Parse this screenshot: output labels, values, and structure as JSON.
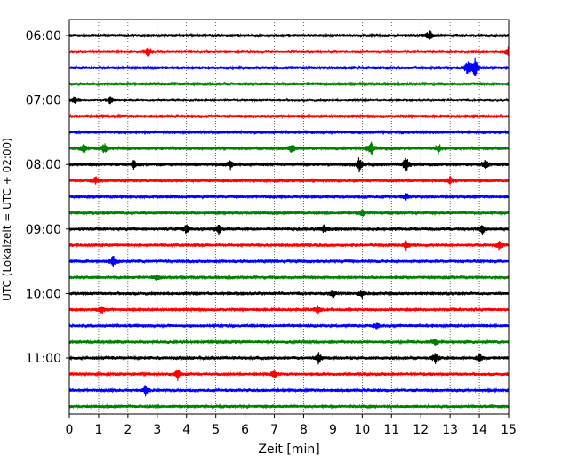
{
  "chart_data": {
    "type": "line",
    "title": "",
    "xlabel": "Zeit  [min]",
    "ylabel": "UTC (Lokalzeit = UTC + 02:00)",
    "xlim": [
      0,
      15
    ],
    "x_ticks": [
      "0",
      "1",
      "2",
      "3",
      "4",
      "5",
      "6",
      "7",
      "8",
      "9",
      "10",
      "11",
      "12",
      "13",
      "14",
      "15"
    ],
    "y_ticks": [
      "06:00",
      "07:00",
      "08:00",
      "09:00",
      "10:00",
      "11:00"
    ],
    "row_start": "06:00",
    "row_interval_min": 15,
    "row_colors": [
      "#000000",
      "#ff0000",
      "#0000ff",
      "#008000"
    ],
    "grid": "vertical dotted at each minute",
    "traces": [
      {
        "label": "06:00",
        "events": [
          [
            12.3,
            0.6
          ]
        ]
      },
      {
        "label": "06:15",
        "events": [
          [
            2.7,
            0.5
          ],
          [
            15.0,
            0.6
          ]
        ]
      },
      {
        "label": "06:30",
        "events": [
          [
            13.6,
            0.8
          ],
          [
            13.85,
            1.0
          ]
        ]
      },
      {
        "label": "06:45",
        "events": []
      },
      {
        "label": "07:00",
        "events": [
          [
            0.2,
            0.4
          ],
          [
            1.4,
            0.4
          ]
        ]
      },
      {
        "label": "07:15",
        "events": []
      },
      {
        "label": "07:30",
        "events": []
      },
      {
        "label": "07:45",
        "events": [
          [
            0.5,
            0.5
          ],
          [
            1.2,
            0.5
          ],
          [
            7.6,
            0.5
          ],
          [
            10.3,
            0.8
          ],
          [
            12.6,
            0.5
          ]
        ]
      },
      {
        "label": "08:00",
        "events": [
          [
            2.2,
            0.5
          ],
          [
            5.5,
            0.4
          ],
          [
            9.9,
            0.7
          ],
          [
            11.5,
            0.9
          ],
          [
            14.2,
            0.6
          ]
        ]
      },
      {
        "label": "08:15",
        "events": [
          [
            0.9,
            0.4
          ],
          [
            13.0,
            0.4
          ]
        ]
      },
      {
        "label": "08:30",
        "events": [
          [
            11.5,
            0.3
          ]
        ]
      },
      {
        "label": "08:45",
        "events": [
          [
            10.0,
            0.3
          ]
        ]
      },
      {
        "label": "09:00",
        "events": [
          [
            4.0,
            0.5
          ],
          [
            5.1,
            0.5
          ],
          [
            8.7,
            0.4
          ],
          [
            14.1,
            0.5
          ]
        ]
      },
      {
        "label": "09:15",
        "events": [
          [
            11.5,
            0.5
          ],
          [
            14.7,
            0.5
          ]
        ]
      },
      {
        "label": "09:30",
        "events": [
          [
            1.5,
            0.6
          ]
        ]
      },
      {
        "label": "09:45",
        "events": [
          [
            3.0,
            0.3
          ]
        ]
      },
      {
        "label": "10:00",
        "events": [
          [
            9.0,
            0.4
          ],
          [
            10.0,
            0.4
          ]
        ]
      },
      {
        "label": "10:15",
        "events": [
          [
            1.1,
            0.4
          ],
          [
            8.5,
            0.4
          ]
        ]
      },
      {
        "label": "10:30",
        "events": [
          [
            10.5,
            0.3
          ]
        ]
      },
      {
        "label": "10:45",
        "events": [
          [
            12.5,
            0.3
          ]
        ]
      },
      {
        "label": "11:00",
        "events": [
          [
            8.5,
            0.6
          ],
          [
            12.5,
            0.5
          ],
          [
            14.0,
            0.4
          ]
        ]
      },
      {
        "label": "11:15",
        "events": [
          [
            3.7,
            0.6
          ],
          [
            7.0,
            0.4
          ]
        ]
      },
      {
        "label": "11:30",
        "events": [
          [
            2.6,
            0.5
          ]
        ]
      },
      {
        "label": "11:45",
        "events": []
      }
    ]
  }
}
